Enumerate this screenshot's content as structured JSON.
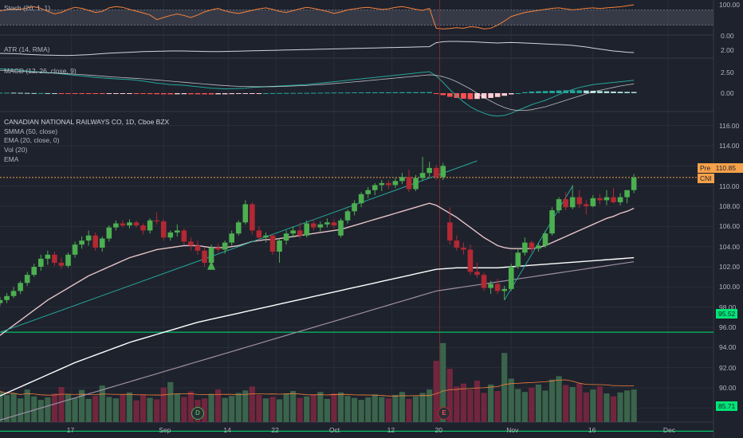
{
  "symbol": {
    "name": "CANADIAN NATIONAL RAILWAYS CO",
    "interval": "1D",
    "exchange": "Cboe BZX",
    "title": "CANADIAN NATIONAL RAILWAYS CO, 1D, Cboe BZX"
  },
  "indicators": {
    "stoch": "Stoch (20, 1, 1)",
    "atr": "ATR (14, RMA)",
    "macd": "MACD (12, 26, close, 9)",
    "smma": "SMMA (50, close)",
    "ema20": "EMA (20, close, 0)",
    "vol": "Vol (20)",
    "ema": "EMA"
  },
  "pane_axes": {
    "stoch": [
      "100.00",
      "0.00"
    ],
    "atr": [
      "2.00"
    ],
    "macd": [
      "2.50",
      "0.00"
    ]
  },
  "price_axis": [
    "116.00",
    "114.00",
    "112.00",
    "110.00",
    "108.00",
    "106.00",
    "104.00",
    "102.00",
    "100.00",
    "98.00",
    "96.00",
    "94.00",
    "92.00",
    "90.00",
    "88.00"
  ],
  "date_axis": [
    "17",
    "Sep",
    "14",
    "22",
    "Oct",
    "12",
    "20",
    "Nov",
    "16",
    "Dec"
  ],
  "tags": {
    "pre_label": "Pre",
    "pre_value": "110.85",
    "ticker_label": "CNI",
    "support_high": "95.52",
    "support_low": "85.71"
  },
  "events": {
    "dividend": "D",
    "earnings": "E"
  },
  "colors": {
    "up": "#4caf50",
    "down": "#b22833",
    "background": "#1e222d",
    "grid": "#2a2e39",
    "support_line": "#00e676",
    "pre_tag": "#f7a14a",
    "smma": "#ffffff",
    "ema20": "#e6c3c8",
    "ema_long": "#9e8fa4",
    "trendline": "#26a69a",
    "stoch_line": "#f7813a"
  },
  "chart_data": {
    "type": "candlestick",
    "title": "CANADIAN NATIONAL RAILWAYS CO, 1D, Cboe BZX",
    "xlabel": "",
    "ylabel": "",
    "ylim": [
      87,
      117
    ],
    "grid": true,
    "ohlc": [
      [
        98.4,
        99.0,
        98.1,
        98.7
      ],
      [
        98.7,
        99.4,
        98.4,
        99.1
      ],
      [
        99.1,
        100.0,
        98.9,
        99.6
      ],
      [
        99.6,
        100.6,
        99.3,
        100.4
      ],
      [
        100.4,
        101.5,
        100.1,
        101.2
      ],
      [
        101.2,
        102.3,
        101.0,
        102.0
      ],
      [
        102.0,
        103.2,
        101.6,
        102.8
      ],
      [
        102.8,
        103.6,
        102.2,
        103.2
      ],
      [
        103.2,
        103.5,
        102.1,
        102.4
      ],
      [
        102.4,
        102.9,
        101.8,
        102.1
      ],
      [
        102.1,
        103.4,
        101.9,
        103.2
      ],
      [
        103.2,
        104.5,
        102.9,
        104.2
      ],
      [
        104.2,
        105.0,
        103.8,
        104.6
      ],
      [
        104.6,
        105.6,
        104.1,
        105.1
      ],
      [
        105.1,
        105.4,
        103.6,
        103.9
      ],
      [
        103.9,
        105.0,
        103.5,
        104.8
      ],
      [
        104.8,
        106.1,
        104.5,
        105.9
      ],
      [
        105.9,
        106.6,
        105.6,
        106.3
      ],
      [
        106.3,
        106.6,
        105.9,
        106.1
      ],
      [
        106.1,
        106.7,
        105.8,
        106.4
      ],
      [
        106.4,
        106.6,
        105.9,
        106.1
      ],
      [
        106.1,
        106.3,
        105.2,
        105.6
      ],
      [
        105.6,
        106.8,
        105.3,
        106.6
      ],
      [
        106.6,
        107.4,
        106.2,
        106.5
      ],
      [
        106.5,
        106.7,
        104.6,
        104.9
      ],
      [
        104.9,
        105.6,
        104.6,
        105.4
      ],
      [
        105.4,
        106.2,
        105.0,
        105.6
      ],
      [
        105.6,
        105.8,
        104.2,
        104.5
      ],
      [
        104.5,
        104.9,
        103.6,
        104.1
      ],
      [
        104.1,
        104.6,
        103.2,
        103.6
      ],
      [
        103.6,
        103.9,
        102.0,
        102.4
      ],
      [
        102.4,
        104.2,
        102.0,
        103.9
      ],
      [
        103.9,
        104.3,
        103.4,
        103.7
      ],
      [
        103.7,
        104.6,
        103.3,
        104.4
      ],
      [
        104.4,
        105.6,
        104.1,
        105.3
      ],
      [
        105.3,
        106.6,
        105.1,
        106.4
      ],
      [
        106.4,
        108.6,
        106.2,
        108.2
      ],
      [
        108.2,
        108.4,
        105.2,
        105.6
      ],
      [
        105.6,
        106.0,
        104.6,
        104.9
      ],
      [
        104.9,
        105.4,
        104.4,
        105.1
      ],
      [
        105.1,
        105.2,
        103.2,
        103.5
      ],
      [
        103.5,
        104.8,
        102.4,
        104.6
      ],
      [
        104.6,
        105.6,
        104.2,
        105.3
      ],
      [
        105.3,
        106.0,
        104.9,
        105.6
      ],
      [
        105.6,
        106.4,
        104.8,
        105.1
      ],
      [
        105.1,
        106.6,
        104.9,
        106.3
      ],
      [
        106.3,
        106.7,
        105.6,
        105.9
      ],
      [
        105.9,
        106.5,
        105.5,
        106.2
      ],
      [
        106.2,
        106.8,
        105.9,
        106.4
      ],
      [
        106.4,
        106.7,
        105.8,
        106.1
      ],
      [
        105.1,
        106.8,
        104.9,
        106.6
      ],
      [
        106.6,
        107.7,
        106.3,
        107.5
      ],
      [
        107.5,
        108.6,
        107.1,
        108.3
      ],
      [
        108.3,
        109.4,
        107.9,
        109.2
      ],
      [
        109.2,
        109.9,
        108.8,
        109.6
      ],
      [
        109.6,
        110.3,
        109.1,
        110.1
      ],
      [
        110.1,
        110.6,
        109.5,
        110.3
      ],
      [
        110.3,
        110.6,
        109.7,
        110.1
      ],
      [
        110.1,
        110.8,
        109.8,
        110.5
      ],
      [
        110.5,
        111.3,
        110.2,
        110.9
      ],
      [
        110.9,
        111.6,
        109.4,
        109.7
      ],
      [
        109.7,
        111.1,
        109.5,
        110.8
      ],
      [
        110.8,
        112.9,
        110.5,
        111.3
      ],
      [
        111.3,
        112.4,
        110.9,
        111.8
      ],
      [
        111.8,
        112.1,
        110.6,
        110.9
      ],
      [
        110.9,
        112.3,
        110.6,
        112.0
      ],
      [
        106.4,
        107.9,
        104.2,
        104.6
      ],
      [
        104.6,
        105.1,
        103.6,
        103.9
      ],
      [
        103.9,
        104.4,
        103.2,
        103.7
      ],
      [
        103.7,
        104.2,
        101.2,
        101.5
      ],
      [
        101.5,
        102.4,
        100.9,
        101.2
      ],
      [
        101.2,
        101.4,
        99.6,
        99.9
      ],
      [
        99.9,
        100.6,
        99.3,
        100.3
      ],
      [
        100.3,
        100.8,
        99.3,
        99.6
      ],
      [
        99.6,
        100.1,
        98.7,
        99.8
      ],
      [
        99.8,
        102.3,
        99.6,
        102.0
      ],
      [
        102.0,
        103.8,
        101.8,
        103.4
      ],
      [
        103.4,
        104.9,
        103.1,
        104.4
      ],
      [
        104.4,
        104.6,
        103.4,
        103.8
      ],
      [
        103.8,
        104.4,
        103.5,
        104.1
      ],
      [
        104.1,
        105.6,
        103.9,
        105.3
      ],
      [
        105.3,
        107.9,
        105.1,
        107.6
      ],
      [
        107.6,
        108.9,
        107.3,
        108.7
      ],
      [
        108.7,
        109.4,
        107.6,
        107.9
      ],
      [
        107.9,
        110.1,
        107.7,
        108.9
      ],
      [
        108.9,
        109.6,
        107.8,
        108.2
      ],
      [
        108.2,
        108.6,
        107.2,
        108.0
      ],
      [
        108.0,
        109.1,
        107.9,
        108.8
      ],
      [
        108.8,
        109.2,
        108.2,
        108.6
      ],
      [
        108.6,
        109.6,
        108.1,
        108.9
      ],
      [
        108.9,
        109.8,
        108.3,
        108.4
      ],
      [
        108.4,
        109.3,
        108.1,
        108.9
      ],
      [
        108.9,
        109.4,
        108.3,
        109.6
      ],
      [
        109.6,
        111.2,
        109.3,
        110.85
      ]
    ],
    "volume": [
      62,
      55,
      58,
      48,
      66,
      52,
      45,
      50,
      58,
      71,
      56,
      49,
      65,
      47,
      53,
      74,
      51,
      48,
      56,
      60,
      44,
      55,
      49,
      46,
      70,
      81,
      58,
      51,
      62,
      45,
      48,
      57,
      66,
      49,
      53,
      59,
      64,
      72,
      55,
      48,
      51,
      46,
      58,
      63,
      49,
      52,
      55,
      61,
      47,
      58,
      60,
      53,
      49,
      45,
      50,
      56,
      51,
      48,
      55,
      61,
      47,
      52,
      59,
      66,
      124,
      160,
      108,
      72,
      78,
      66,
      84,
      59,
      76,
      63,
      140,
      88,
      67,
      61,
      70,
      76,
      64,
      86,
      93,
      75,
      71,
      78,
      60,
      66,
      72,
      58,
      52,
      60,
      64,
      66
    ],
    "stoch": [
      76,
      80,
      84,
      82,
      88,
      92,
      86,
      74,
      64,
      70,
      82,
      90,
      86,
      78,
      70,
      74,
      88,
      93,
      90,
      82,
      75,
      68,
      60,
      42,
      50,
      58,
      64,
      58,
      50,
      60,
      72,
      80,
      86,
      76,
      70,
      66,
      72,
      78,
      84,
      88,
      82,
      74,
      70,
      77,
      84,
      90,
      86,
      80,
      74,
      66,
      72,
      80,
      84,
      88,
      90,
      86,
      82,
      84,
      90,
      93,
      88,
      82,
      78,
      86,
      8,
      5,
      7,
      10,
      8,
      14,
      12,
      5,
      8,
      20,
      36,
      54,
      62,
      70,
      74,
      78,
      82,
      86,
      88,
      84,
      80,
      83,
      86,
      88,
      85,
      88,
      90,
      92,
      96,
      100
    ],
    "atr": [
      2.05,
      2.04,
      2.03,
      2.01,
      1.99,
      1.97,
      1.95,
      1.94,
      1.93,
      1.92,
      1.92,
      1.93,
      1.95,
      1.97,
      2.0,
      2.03,
      2.06,
      2.08,
      2.1,
      2.12,
      2.14,
      2.16,
      2.17,
      2.18,
      2.19,
      2.2,
      2.2,
      2.2,
      2.19,
      2.18,
      2.17,
      2.16,
      2.16,
      2.17,
      2.18,
      2.19,
      2.2,
      2.21,
      2.22,
      2.23,
      2.24,
      2.25,
      2.26,
      2.27,
      2.28,
      2.29,
      2.3,
      2.31,
      2.32,
      2.33,
      2.34,
      2.35,
      2.36,
      2.37,
      2.38,
      2.39,
      2.4,
      2.41,
      2.42,
      2.43,
      2.44,
      2.45,
      2.46,
      2.47,
      2.72,
      2.78,
      2.8,
      2.8,
      2.79,
      2.78,
      2.76,
      2.74,
      2.72,
      2.7,
      2.72,
      2.73,
      2.72,
      2.7,
      2.68,
      2.66,
      2.64,
      2.62,
      2.6,
      2.58,
      2.55,
      2.5,
      2.45,
      2.38,
      2.32,
      2.26,
      2.2,
      2.16,
      2.12,
      2.1
    ],
    "macd": [
      3.4,
      3.35,
      3.3,
      3.2,
      3.1,
      3.0,
      2.95,
      2.88,
      2.8,
      2.7,
      2.6,
      2.5,
      2.4,
      2.3,
      2.2,
      2.12,
      2.05,
      2.0,
      1.95,
      1.9,
      1.8,
      1.7,
      1.55,
      1.4,
      1.3,
      1.2,
      1.15,
      1.1,
      1.0,
      0.9,
      0.8,
      0.7,
      0.65,
      0.6,
      0.62,
      0.65,
      0.7,
      0.8,
      0.85,
      0.9,
      0.95,
      1.0,
      1.05,
      1.1,
      1.15,
      1.2,
      1.3,
      1.4,
      1.5,
      1.6,
      1.7,
      1.8,
      1.9,
      2.0,
      2.1,
      2.2,
      2.3,
      2.4,
      2.5,
      2.6,
      2.7,
      2.8,
      2.9,
      3.0,
      2.4,
      1.5,
      0.5,
      -0.4,
      -1.2,
      -1.9,
      -2.4,
      -2.8,
      -3.1,
      -3.2,
      -3.1,
      -2.8,
      -2.4,
      -2.0,
      -1.6,
      -1.3,
      -1.0,
      -0.6,
      -0.2,
      0.2,
      0.5,
      0.8,
      1.0,
      1.2,
      1.3,
      1.4,
      1.5,
      1.6,
      1.7,
      1.8
    ],
    "macd_signal": [
      3.2,
      3.15,
      3.1,
      3.05,
      3.0,
      2.95,
      2.9,
      2.85,
      2.8,
      2.75,
      2.7,
      2.65,
      2.6,
      2.52,
      2.45,
      2.38,
      2.3,
      2.24,
      2.18,
      2.12,
      2.06,
      2.0,
      1.92,
      1.84,
      1.76,
      1.68,
      1.6,
      1.52,
      1.44,
      1.36,
      1.28,
      1.2,
      1.12,
      1.06,
      1.0,
      0.96,
      0.93,
      0.91,
      0.9,
      0.9,
      0.91,
      0.93,
      0.96,
      1.0,
      1.04,
      1.08,
      1.14,
      1.2,
      1.27,
      1.34,
      1.42,
      1.5,
      1.58,
      1.66,
      1.75,
      1.84,
      1.93,
      2.02,
      2.11,
      2.2,
      2.29,
      2.38,
      2.47,
      2.56,
      2.5,
      2.3,
      2.0,
      1.6,
      1.1,
      0.6,
      0.0,
      -0.6,
      -1.1,
      -1.6,
      -2.0,
      -2.3,
      -2.4,
      -2.4,
      -2.3,
      -2.1,
      -1.9,
      -1.6,
      -1.3,
      -1.0,
      -0.7,
      -0.4,
      -0.1,
      0.2,
      0.4,
      0.6,
      0.8,
      1.0,
      1.15,
      1.3
    ],
    "smma_50": [
      89.2,
      89.5,
      89.8,
      90.1,
      90.4,
      90.7,
      91.0,
      91.3,
      91.6,
      91.9,
      92.2,
      92.5,
      92.75,
      93.0,
      93.25,
      93.5,
      93.75,
      94.0,
      94.25,
      94.5,
      94.7,
      94.9,
      95.1,
      95.3,
      95.5,
      95.7,
      95.9,
      96.1,
      96.3,
      96.5,
      96.65,
      96.8,
      96.95,
      97.1,
      97.25,
      97.4,
      97.55,
      97.7,
      97.85,
      98.0,
      98.15,
      98.3,
      98.45,
      98.6,
      98.75,
      98.9,
      99.05,
      99.2,
      99.35,
      99.5,
      99.65,
      99.8,
      99.95,
      100.1,
      100.25,
      100.4,
      100.55,
      100.7,
      100.85,
      101.0,
      101.15,
      101.3,
      101.45,
      101.6,
      101.75,
      101.8,
      101.85,
      101.9,
      101.9,
      101.9,
      101.9,
      101.9,
      101.9,
      101.9,
      101.95,
      102.0,
      102.05,
      102.1,
      102.15,
      102.2,
      102.25,
      102.3,
      102.35,
      102.4,
      102.45,
      102.5,
      102.55,
      102.6,
      102.65,
      102.7,
      102.75,
      102.8,
      102.85,
      102.9
    ],
    "ema_20": [
      95.2,
      95.7,
      96.2,
      96.7,
      97.2,
      97.7,
      98.2,
      98.7,
      99.1,
      99.5,
      99.9,
      100.3,
      100.7,
      101.1,
      101.4,
      101.7,
      102.0,
      102.3,
      102.6,
      102.9,
      103.1,
      103.3,
      103.5,
      103.7,
      103.8,
      103.9,
      104.0,
      104.1,
      104.1,
      104.1,
      104.0,
      103.9,
      103.9,
      103.9,
      104.0,
      104.1,
      104.3,
      104.5,
      104.6,
      104.7,
      104.7,
      104.8,
      104.9,
      105.0,
      105.1,
      105.2,
      105.3,
      105.4,
      105.5,
      105.6,
      105.7,
      105.9,
      106.1,
      106.3,
      106.5,
      106.7,
      106.9,
      107.1,
      107.3,
      107.5,
      107.7,
      107.9,
      108.1,
      108.3,
      108.1,
      107.7,
      107.3,
      106.9,
      106.4,
      105.9,
      105.4,
      104.9,
      104.5,
      104.1,
      103.9,
      103.8,
      103.8,
      103.8,
      103.8,
      103.9,
      104.1,
      104.4,
      104.7,
      105.0,
      105.3,
      105.6,
      105.9,
      106.2,
      106.5,
      106.8,
      107.0,
      107.3,
      107.5,
      107.8
    ],
    "ema_long": [
      86.8,
      87.0,
      87.2,
      87.4,
      87.6,
      87.8,
      88.0,
      88.2,
      88.4,
      88.6,
      88.8,
      89.0,
      89.2,
      89.4,
      89.6,
      89.8,
      90.0,
      90.2,
      90.4,
      90.6,
      90.8,
      91.0,
      91.2,
      91.4,
      91.6,
      91.8,
      92.0,
      92.2,
      92.4,
      92.6,
      92.8,
      93.0,
      93.2,
      93.4,
      93.6,
      93.8,
      94.0,
      94.2,
      94.4,
      94.6,
      94.8,
      95.0,
      95.2,
      95.4,
      95.6,
      95.8,
      96.0,
      96.2,
      96.4,
      96.6,
      96.8,
      97.0,
      97.2,
      97.4,
      97.6,
      97.8,
      98.0,
      98.2,
      98.4,
      98.6,
      98.8,
      99.0,
      99.2,
      99.4,
      99.6,
      99.7,
      99.8,
      99.9,
      100.0,
      100.1,
      100.2,
      100.3,
      100.4,
      100.5,
      100.6,
      100.7,
      100.8,
      100.9,
      101.0,
      101.1,
      101.2,
      101.3,
      101.4,
      101.5,
      101.6,
      101.7,
      101.8,
      101.9,
      102.0,
      102.1,
      102.2,
      102.3,
      102.4,
      102.5
    ],
    "support_levels": [
      95.52,
      85.71
    ],
    "pre_market_price": 110.85,
    "trendlines": [
      {
        "from_index": 0,
        "from_price": 95.5,
        "to_index": 70,
        "to_price": 112.5
      },
      {
        "from_index": 74,
        "from_price": 98.7,
        "to_index": 84,
        "to_price": 110.0
      }
    ]
  }
}
